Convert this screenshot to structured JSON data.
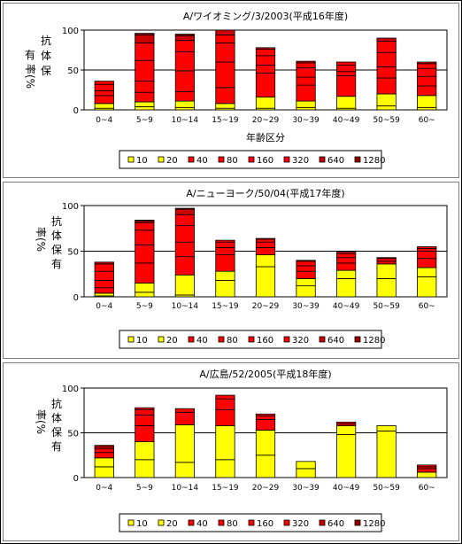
{
  "chart_data": [
    {
      "type": "bar",
      "stacked": true,
      "title": "A/ワイオミング/3/2003(平成16年度)",
      "ylabel": "抗体保有率(%)",
      "xlabel": "年齢区分",
      "ylim": [
        0,
        100
      ],
      "yticks": [
        0,
        50,
        100
      ],
      "categories": [
        "0~4",
        "5~9",
        "10~14",
        "15~19",
        "20~29",
        "30~39",
        "40~49",
        "50~59",
        "60~"
      ],
      "legend": [
        "10",
        "20",
        "40",
        "80",
        "160",
        "320",
        "640",
        "1280"
      ],
      "series": [
        {
          "name": "10",
          "values": [
            2,
            4,
            3,
            2,
            2,
            3,
            2,
            5,
            3
          ]
        },
        {
          "name": "20",
          "values": [
            6,
            6,
            8,
            6,
            14,
            8,
            15,
            15,
            15
          ]
        },
        {
          "name": "40",
          "values": [
            10,
            12,
            12,
            20,
            30,
            20,
            26,
            20,
            12
          ]
        },
        {
          "name": "80",
          "values": [
            6,
            14,
            26,
            32,
            10,
            10,
            5,
            14,
            12
          ]
        },
        {
          "name": "160",
          "values": [
            8,
            26,
            24,
            24,
            12,
            12,
            8,
            18,
            10
          ]
        },
        {
          "name": "320",
          "values": [
            4,
            22,
            14,
            10,
            8,
            6,
            4,
            14,
            6
          ]
        },
        {
          "name": "640",
          "values": [
            0,
            10,
            6,
            6,
            2,
            2,
            0,
            4,
            2
          ]
        },
        {
          "name": "1280",
          "values": [
            0,
            2,
            2,
            0,
            0,
            0,
            0,
            0,
            0
          ]
        }
      ]
    },
    {
      "type": "bar",
      "stacked": true,
      "title": "A/ニューヨーク/50/04(平成17年度)",
      "ylabel": "抗体保有率(%)",
      "xlabel": "",
      "ylim": [
        0,
        100
      ],
      "yticks": [
        0,
        50,
        100
      ],
      "categories": [
        "0~4",
        "5~9",
        "10~14",
        "15~19",
        "20~29",
        "30~39",
        "40~49",
        "50~59",
        "60~"
      ],
      "legend": [
        "10",
        "20",
        "40",
        "80",
        "160",
        "320",
        "640",
        "1280"
      ],
      "series": [
        {
          "name": "10",
          "values": [
            1,
            5,
            2,
            18,
            33,
            12,
            20,
            20,
            22
          ]
        },
        {
          "name": "20",
          "values": [
            3,
            10,
            22,
            10,
            13,
            8,
            9,
            16,
            10
          ]
        },
        {
          "name": "40",
          "values": [
            6,
            22,
            20,
            18,
            8,
            8,
            8,
            3,
            10
          ]
        },
        {
          "name": "80",
          "values": [
            8,
            20,
            16,
            8,
            6,
            6,
            6,
            3,
            8
          ]
        },
        {
          "name": "160",
          "values": [
            10,
            16,
            18,
            6,
            3,
            5,
            4,
            1,
            3
          ]
        },
        {
          "name": "320",
          "values": [
            8,
            8,
            12,
            2,
            1,
            1,
            2,
            0,
            2
          ]
        },
        {
          "name": "640",
          "values": [
            2,
            2,
            6,
            0,
            0,
            0,
            0,
            0,
            0
          ]
        },
        {
          "name": "1280",
          "values": [
            0,
            1,
            1,
            0,
            0,
            0,
            0,
            0,
            0
          ]
        }
      ]
    },
    {
      "type": "bar",
      "stacked": true,
      "title": "A/広島/52/2005(平成18年度)",
      "ylabel": "抗体保有率(%)",
      "xlabel": "",
      "ylim": [
        0,
        100
      ],
      "yticks": [
        0,
        50,
        100
      ],
      "categories": [
        "0~4",
        "5~9",
        "10~14",
        "15~19",
        "20~29",
        "30~39",
        "40~49",
        "50~59",
        "60~"
      ],
      "legend": [
        "10",
        "20",
        "40",
        "80",
        "160",
        "320",
        "640",
        "1280"
      ],
      "series": [
        {
          "name": "10",
          "values": [
            12,
            20,
            17,
            20,
            25,
            10,
            48,
            52,
            6
          ]
        },
        {
          "name": "20",
          "values": [
            10,
            20,
            42,
            38,
            28,
            8,
            10,
            6,
            0
          ]
        },
        {
          "name": "40",
          "values": [
            6,
            18,
            14,
            18,
            12,
            0,
            2,
            0,
            4
          ]
        },
        {
          "name": "80",
          "values": [
            4,
            12,
            4,
            12,
            4,
            0,
            2,
            0,
            2
          ]
        },
        {
          "name": "160",
          "values": [
            2,
            6,
            0,
            4,
            2,
            0,
            0,
            0,
            2
          ]
        },
        {
          "name": "320",
          "values": [
            0,
            2,
            0,
            0,
            0,
            0,
            0,
            0,
            0
          ]
        },
        {
          "name": "640",
          "values": [
            2,
            0,
            0,
            0,
            0,
            0,
            0,
            0,
            0
          ]
        },
        {
          "name": "1280",
          "values": [
            0,
            0,
            0,
            0,
            0,
            0,
            0,
            0,
            0
          ]
        }
      ]
    }
  ],
  "colors": {
    "10": "#ffff00",
    "20": "#ffff00",
    "40": "#ff0000",
    "80": "#ff0000",
    "160": "#ff0000",
    "320": "#ff0000",
    "640": "#cc0000",
    "1280": "#990000",
    "bar_outline": "#000000",
    "gridline": "#000000"
  }
}
